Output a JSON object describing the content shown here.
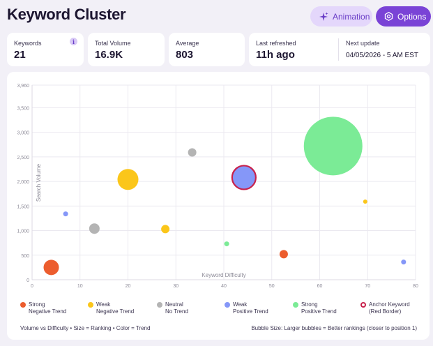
{
  "header": {
    "title": "Keyword Cluster",
    "animation_label": "Animation",
    "options_label": "Options"
  },
  "stats": {
    "keywords": {
      "label": "Keywords",
      "value": "21"
    },
    "total_volume": {
      "label": "Total Volume",
      "value": "16.9K"
    },
    "average": {
      "label": "Average",
      "value": "803"
    },
    "last_refreshed": {
      "label": "Last refreshed",
      "value": "11h ago"
    },
    "next_update": {
      "label": "Next update",
      "value": "04/05/2026 - 5 AM EST"
    }
  },
  "colors": {
    "strong_negative": "#ec5d2e",
    "weak_negative": "#fbc61a",
    "neutral": "#b4b4b4",
    "weak_positive": "#8597f8",
    "strong_positive": "#7beb96",
    "anchor_border": "#c8214b",
    "accent": "#7a43d6"
  },
  "chart_data": {
    "type": "scatter",
    "subtype": "bubble",
    "xlabel": "Keyword Difficulty",
    "ylabel": "Search Volume",
    "xlim": [
      0,
      80
    ],
    "ylim": [
      0,
      3960
    ],
    "xticks": [
      0,
      10,
      20,
      30,
      40,
      50,
      60,
      70,
      80
    ],
    "yticks": [
      0,
      500,
      1000,
      1500,
      2000,
      2500,
      3000,
      3500,
      3960
    ],
    "ytick_labels": [
      "0",
      "500",
      "1,000",
      "1,500",
      "2,000",
      "2,500",
      "3,000",
      "3,500",
      "3,960"
    ],
    "grid": true,
    "points": [
      {
        "x": 4,
        "y": 250,
        "size": 11,
        "trend": "strong_negative"
      },
      {
        "x": 7,
        "y": 1340,
        "size": 3.5,
        "trend": "weak_positive"
      },
      {
        "x": 13,
        "y": 1040,
        "size": 7.5,
        "trend": "neutral"
      },
      {
        "x": 20,
        "y": 2040,
        "size": 15,
        "trend": "weak_negative"
      },
      {
        "x": 27.8,
        "y": 1030,
        "size": 6,
        "trend": "weak_negative"
      },
      {
        "x": 33.4,
        "y": 2590,
        "size": 6,
        "trend": "neutral"
      },
      {
        "x": 40.6,
        "y": 730,
        "size": 3.5,
        "trend": "strong_positive"
      },
      {
        "x": 44.2,
        "y": 2080,
        "size": 17,
        "trend": "weak_positive",
        "anchor": true
      },
      {
        "x": 52.5,
        "y": 520,
        "size": 6,
        "trend": "strong_negative"
      },
      {
        "x": 62.8,
        "y": 2720,
        "size": 42,
        "trend": "strong_positive"
      },
      {
        "x": 69.5,
        "y": 1590,
        "size": 3,
        "trend": "weak_negative"
      },
      {
        "x": 77.5,
        "y": 360,
        "size": 3.5,
        "trend": "weak_positive"
      }
    ],
    "legend": [
      {
        "key": "strong_negative",
        "line1": "Strong",
        "line2": "Negative Trend"
      },
      {
        "key": "weak_negative",
        "line1": "Weak",
        "line2": "Negative Trend"
      },
      {
        "key": "neutral",
        "line1": "Neutral",
        "line2": "No Trend"
      },
      {
        "key": "weak_positive",
        "line1": "Weak",
        "line2": "Positive Trend"
      },
      {
        "key": "strong_positive",
        "line1": "Strong",
        "line2": "Positive Trend"
      },
      {
        "key": "anchor",
        "line1": "Anchor Keyword",
        "line2": "(Red Border)"
      }
    ],
    "legend_placement": "bottom"
  },
  "footer": {
    "left": "Volume vs Difficulty • Size = Ranking • Color = Trend",
    "right": "Bubble Size: Larger bubbles = Better rankings (closer to position 1)"
  }
}
